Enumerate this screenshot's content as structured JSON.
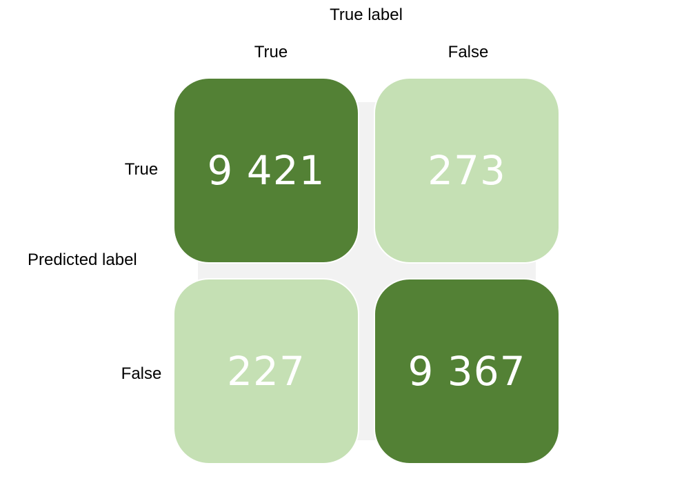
{
  "title": "True label",
  "row_axis_label": "Predicted label",
  "column_headers": [
    "True",
    "False"
  ],
  "row_headers": [
    "True",
    "False"
  ],
  "colors": {
    "high": "#538135",
    "low": "#c5e0b4",
    "backdrop": "#f2f2f2",
    "text": "#ffffff"
  },
  "cells": [
    {
      "value": "9 421",
      "level": "high"
    },
    {
      "value": "273",
      "level": "low"
    },
    {
      "value": "227",
      "level": "low"
    },
    {
      "value": "9 367",
      "level": "high"
    }
  ]
}
